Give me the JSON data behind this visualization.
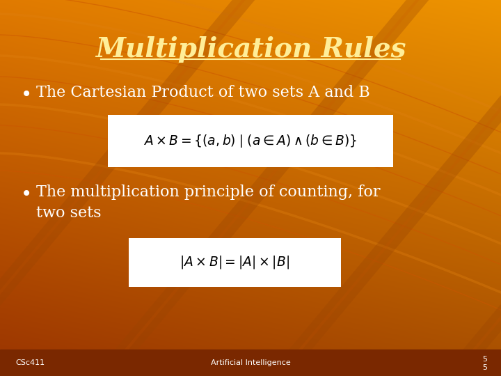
{
  "title": "Multiplication Rules",
  "title_color": "#FFEE99",
  "bullet1": "The Cartesian Product of two sets A and B",
  "bullet2_line1": "The multiplication principle of counting, for",
  "bullet2_line2": "two sets",
  "bullet_color": "#FFFFFF",
  "formula1": "$A \\times B = \\{(a, b)\\mid (a \\in A) \\wedge (b \\in B)\\}$",
  "formula2": "$|A \\times B| = |A| \\times |B|$",
  "formula_box_color": "#FFFFFF",
  "formula_text_color": "#000000",
  "footer_left": "CSc411",
  "footer_center": "Artificial Intelligence",
  "footer_right_line1": "5",
  "footer_right_line2": "5",
  "footer_color": "#FFFFFF",
  "stripe_color": "#CC6600",
  "stripe_color2": "#E07000"
}
